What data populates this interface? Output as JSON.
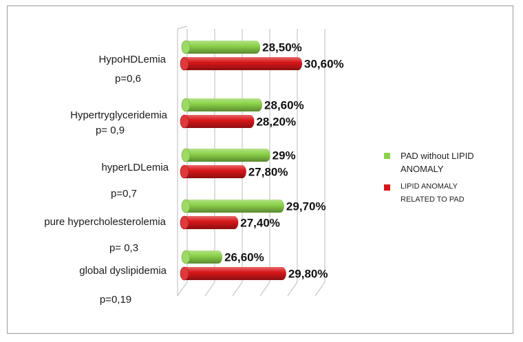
{
  "chart_data": {
    "type": "bar",
    "orientation": "horizontal",
    "style": "3d-cylinder",
    "categories": [
      {
        "name": "HypoHDLemia",
        "p": "p=0,6"
      },
      {
        "name": "Hypertryglyceridemia",
        "p": "p= 0,9"
      },
      {
        "name": "hyperLDLemia",
        "p": "p=0,7"
      },
      {
        "name": "pure hypercholesterolemia",
        "p": "p= 0,3"
      },
      {
        "name": "global dyslipidemia",
        "p": "p=0,19"
      }
    ],
    "series": [
      {
        "name": "PAD without LIPID ANOMALY",
        "legend_lines": [
          "PAD without LIPID",
          "ANOMALY"
        ],
        "color": "#8CD24A",
        "values": [
          28.5,
          28.6,
          29.0,
          29.7,
          26.6
        ],
        "labels": [
          "28,50%",
          "28,60%",
          "29%",
          "29,70%",
          "26,60%"
        ]
      },
      {
        "name": "LIPID ANOMALY RELATED TO PAD",
        "legend_lines": [
          "LIPID ANOMALY",
          "RELATED TO PAD"
        ],
        "color": "#D8171A",
        "values": [
          30.6,
          28.2,
          27.8,
          27.4,
          29.8
        ],
        "labels": [
          "30,60%",
          "28,20%",
          "27,80%",
          "27,40%",
          "29,80%"
        ]
      }
    ],
    "xlim": [
      24.7,
      31.6
    ],
    "grid": true,
    "legend_position": "right"
  }
}
